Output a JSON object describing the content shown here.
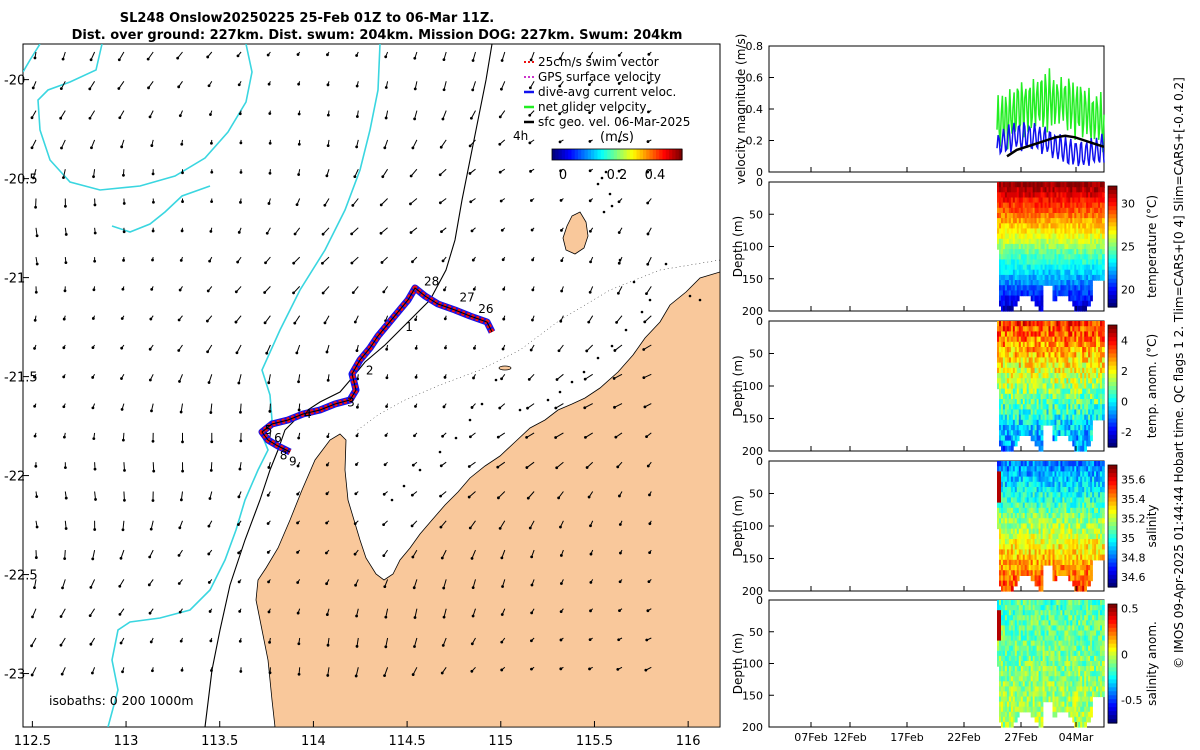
{
  "title": {
    "line1": "SL248 Onslow20250225 25-Feb 01Z to 06-Mar 11Z.",
    "line2": "Dist. over ground: 227km. Dist. swum: 204km. Mission DOG: 227km. Swum: 204km"
  },
  "colors": {
    "land": "#f9c89b",
    "coast_line": "#3ad6e0",
    "track_red": "#ee1111",
    "current_blue": "#1111ee",
    "glider_green": "#22ee22",
    "gps_magenta": "#cc33cc"
  },
  "map": {
    "x_ticks": [
      "112.5",
      "113",
      "113.5",
      "114",
      "114.5",
      "115",
      "115.5",
      "116"
    ],
    "y_ticks": [
      "-20",
      "-20.5",
      "-21",
      "-21.5",
      "-22",
      "-22.5",
      "-23"
    ],
    "x_range": [
      112.45,
      116.17
    ],
    "y_range": [
      -23.27,
      -19.82
    ],
    "legend": [
      {
        "label": "25cm/s swim vector",
        "color": "#ee1111",
        "kind": "dash"
      },
      {
        "label": "GPS surface velocity",
        "color": "#cc33cc",
        "kind": "dash"
      },
      {
        "label": "dive-avg current veloc.",
        "color": "#1111ee",
        "kind": "line"
      },
      {
        "label": "net glider velocity",
        "color": "#22ee22",
        "kind": "line"
      },
      {
        "label": "sfc geo. vel. 06-Mar-2025",
        "color": "#000000",
        "kind": "line"
      }
    ],
    "legend_note": "4h",
    "colorbar_label": "(m/s)",
    "colorbar_ticks": [
      "0",
      "0.2",
      "0.4"
    ],
    "isobaths_label": "isobaths: 0   200  1000m",
    "day_labels": [
      {
        "text": "28",
        "lon": 114.59,
        "lat": -21.04
      },
      {
        "text": "27",
        "lon": 114.78,
        "lat": -21.12
      },
      {
        "text": "26",
        "lon": 114.88,
        "lat": -21.18
      },
      {
        "text": "1",
        "lon": 114.49,
        "lat": -21.27
      },
      {
        "text": "2",
        "lon": 114.28,
        "lat": -21.49
      },
      {
        "text": "3",
        "lon": 114.18,
        "lat": -21.65
      },
      {
        "text": "4",
        "lon": 113.95,
        "lat": -21.71
      },
      {
        "text": "5",
        "lon": 113.74,
        "lat": -21.79
      },
      {
        "text": "6",
        "lon": 113.79,
        "lat": -21.83
      },
      {
        "text": "8",
        "lon": 113.82,
        "lat": -21.92
      },
      {
        "text": "9",
        "lon": 113.87,
        "lat": -21.95
      }
    ]
  },
  "chart_data": [
    {
      "type": "line",
      "title": "velocity magnitude",
      "ylabel": "velocity magnitude (m/s)",
      "ylim": [
        0,
        0.8
      ],
      "yticks": [
        "0",
        "0.2",
        "0.4",
        "0.6",
        "0.8"
      ],
      "series": [
        {
          "name": "net glider velocity",
          "color": "#22ee22"
        },
        {
          "name": "dive-avg current veloc.",
          "color": "#1111ee"
        },
        {
          "name": "sfc geo. vel.",
          "color": "#000000",
          "values": [
            0.1,
            0.14,
            0.16,
            0.18,
            0.2,
            0.22,
            0.23,
            0.22,
            0.2,
            0.18,
            0.16
          ]
        }
      ]
    },
    {
      "type": "heatmap",
      "ylabel": "Depth (m)",
      "yticks": [
        "0",
        "50",
        "100",
        "150",
        "200"
      ],
      "colorbar_label": "temperature (°C)",
      "colorbar_ticks": [
        "30",
        "25",
        "20"
      ],
      "clim": [
        18,
        32
      ]
    },
    {
      "type": "heatmap",
      "ylabel": "Depth (m)",
      "yticks": [
        "0",
        "50",
        "100",
        "150",
        "200"
      ],
      "colorbar_label": "temp. anom. (°C)",
      "colorbar_ticks": [
        "4",
        "2",
        "0",
        "-2"
      ],
      "clim": [
        -3,
        5
      ]
    },
    {
      "type": "heatmap",
      "ylabel": "Depth (m)",
      "yticks": [
        "0",
        "50",
        "100",
        "150",
        "200"
      ],
      "colorbar_label": "salinity",
      "colorbar_ticks": [
        "35.6",
        "35.4",
        "35.2",
        "35",
        "34.8",
        "34.6"
      ],
      "clim": [
        34.5,
        35.75
      ]
    },
    {
      "type": "heatmap",
      "ylabel": "Depth (m)",
      "yticks": [
        "0",
        "50",
        "100",
        "150",
        "200"
      ],
      "colorbar_label": "salinity anom.",
      "colorbar_ticks": [
        "0.5",
        "0",
        "-0.5"
      ],
      "clim": [
        -0.75,
        0.55
      ],
      "xticks": [
        "07Feb",
        "12Feb",
        "17Feb",
        "22Feb",
        "27Feb",
        "04Mar"
      ]
    }
  ],
  "footer_note": "© IMOS 09-Apr-2025 01:44:44 Hobart time. QC flags 1  2. Tlim=CARS+[0 4] Slim=CARS+[-0.4 0.2]"
}
